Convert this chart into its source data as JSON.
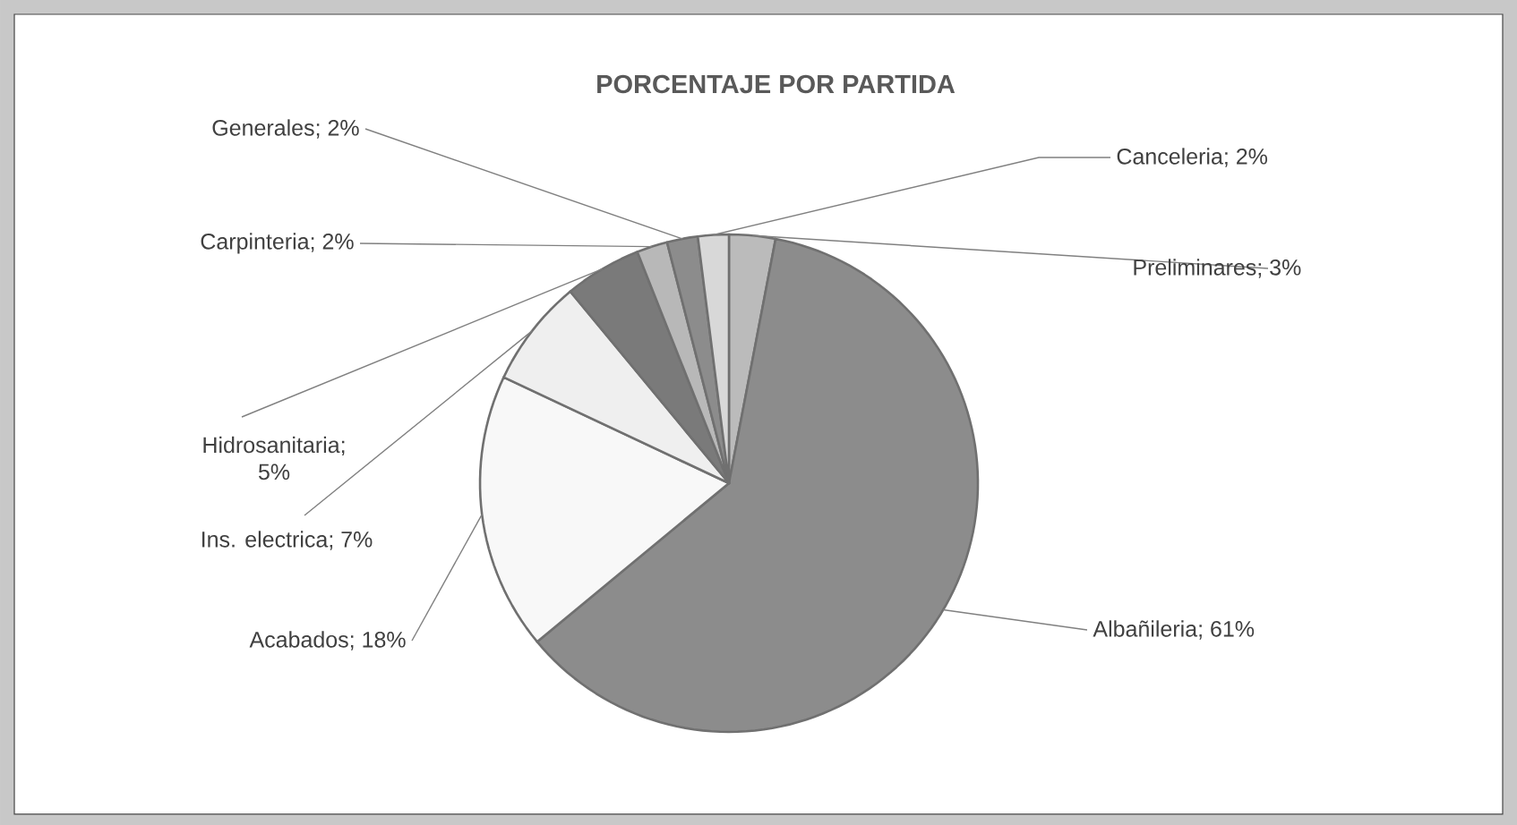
{
  "chart_data": {
    "type": "pie",
    "title": "PORCENTAJE POR PARTIDA",
    "categories": [
      "Preliminares",
      "Albañileria",
      "Acabados",
      "Ins. electrica",
      "Hidrosanitaria",
      "Carpinteria",
      "Generales",
      "Canceleria"
    ],
    "values": [
      3,
      61,
      18,
      7,
      5,
      2,
      2,
      2
    ],
    "colors": [
      "#bbbbbb",
      "#8c8c8c",
      "#f8f8f8",
      "#efefef",
      "#7a7a7a",
      "#b8b8b8",
      "#8c8c8c",
      "#d8d8d8"
    ],
    "value_labels": [
      "; 3%",
      "; 61%",
      "; 18%",
      "; 7%",
      "; 5%",
      "; 2%",
      "; 2%",
      "; 2%"
    ]
  }
}
